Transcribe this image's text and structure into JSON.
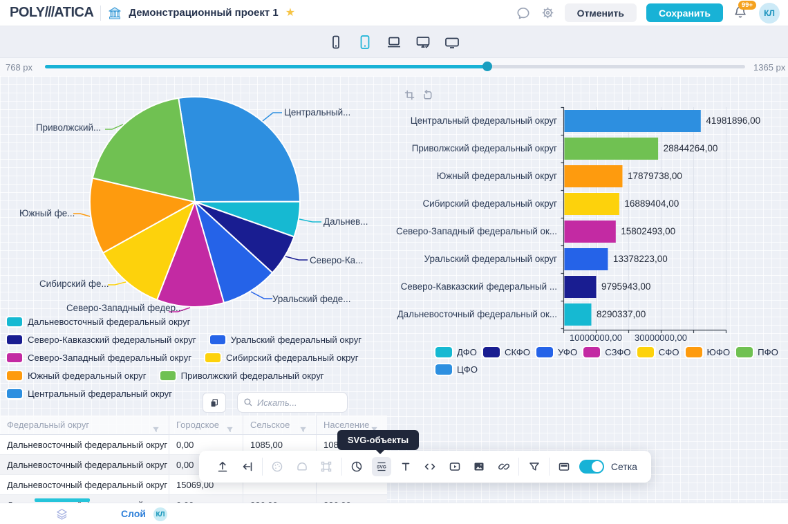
{
  "header": {
    "logo_part1": "POLY",
    "logo_slashes": "///",
    "logo_part2": "ATICA",
    "project_title": "Демонстрационный проект 1",
    "cancel_label": "Отменить",
    "save_label": "Сохранить",
    "notification_count": "99+",
    "avatar_initials": "КЛ"
  },
  "device_bar": {
    "devices": [
      "phone",
      "tablet",
      "laptop",
      "desktop-check",
      "widescreen"
    ],
    "selected": "tablet"
  },
  "width_slider": {
    "min_label": "768 px",
    "max_label": "1365 px",
    "fill_percent": 63.2
  },
  "colors": {
    "accent": "#18b2d6",
    "text_dark": "#2b3a55",
    "text_muted": "#8a93a6",
    "badge_orange": "#f5a21f",
    "layer_link_blue": "#2f80d9"
  },
  "chart_data": [
    {
      "type": "pie",
      "start_angle_deg": -9,
      "slices": [
        {
          "name": "Центральный федеральный округ",
          "short": "ЦФО",
          "callout": "Центральный...",
          "value": 41981896,
          "color": "#2d8fe0"
        },
        {
          "name": "Дальневосточный федеральный округ",
          "short": "ДФО",
          "callout": "Дальнев...",
          "value": 8290337,
          "color": "#16b9d2"
        },
        {
          "name": "Северо-Кавказский федеральный округ",
          "short": "СКФО",
          "callout": "Северо-Ка...",
          "value": 9795943,
          "color": "#191d91"
        },
        {
          "name": "Уральский федеральный округ",
          "short": "УФО",
          "callout": "Уральский феде...",
          "value": 13378223,
          "color": "#2563e8"
        },
        {
          "name": "Северо-Западный федеральный округ",
          "short": "СЗФО",
          "callout": "Северо-Западный федер...",
          "value": 15802493,
          "color": "#c32aa3"
        },
        {
          "name": "Сибирский федеральный округ",
          "short": "СФО",
          "callout": "Сибирский фе...",
          "value": 16889404,
          "color": "#fdd20c"
        },
        {
          "name": "Южный федеральный округ",
          "short": "ЮФО",
          "callout": "Южный фе...",
          "value": 17879738,
          "color": "#fe9b0e"
        },
        {
          "name": "Приволжский федеральный округ",
          "short": "ПФО",
          "callout": "Приволжский...",
          "value": 28844264,
          "color": "#70c152"
        }
      ],
      "legend_order": [
        "ДФО",
        "СКФО",
        "УФО",
        "СЗФО",
        "СФО",
        "ЮФО",
        "ПФО",
        "ЦФО"
      ],
      "legend_position": "bottom"
    },
    {
      "type": "bar",
      "orientation": "horizontal",
      "categories": [
        "Центральный федеральный округ",
        "Приволжский федеральный округ",
        "Южный федеральный округ",
        "Сибирский федеральный округ",
        "Северо-Западный федеральный ок...",
        "Уральский федеральный округ",
        "Северо-Кавказский федеральный ...",
        "Дальневосточный федеральный ок..."
      ],
      "values": [
        41981896,
        28844264,
        17879738,
        16889404,
        15802493,
        13378223,
        9795943,
        8290337
      ],
      "value_labels": [
        "41981896,00",
        "28844264,00",
        "17879738,00",
        "16889404,00",
        "15802493,00",
        "13378223,00",
        "9795943,00",
        "8290337,00"
      ],
      "colors": [
        "#2d8fe0",
        "#70c152",
        "#fe9b0e",
        "#fdd20c",
        "#c32aa3",
        "#2563e8",
        "#191d91",
        "#16b9d2"
      ],
      "xlim": [
        0,
        50000000
      ],
      "x_tick_step": 10000000,
      "x_tick_labels": [
        {
          "v": 10000000,
          "label": "10000000,00"
        },
        {
          "v": 30000000,
          "label": "30000000,00"
        }
      ],
      "grid": "vertical",
      "legend": [
        "ДФО",
        "СКФО",
        "УФО",
        "СЗФО",
        "СФО",
        "ЮФО",
        "ПФО",
        "ЦФО"
      ],
      "legend_position": "bottom"
    }
  ],
  "table": {
    "search_placeholder": "Искать...",
    "columns": [
      "Федеральный округ",
      "Городское",
      "Сельское",
      "Население"
    ],
    "rows": [
      [
        "Дальневосточный федеральный округ",
        "0,00",
        "1085,00",
        "1085,00"
      ],
      [
        "Дальневосточный федеральный округ",
        "0,00",
        "",
        ""
      ],
      [
        "Дальневосточный федеральный округ",
        "15069,00",
        "",
        ""
      ],
      [
        "Дальневосточный федеральный округ",
        "0,00",
        "226,00",
        "226,00"
      ]
    ]
  },
  "toolbar": {
    "tooltip": "SVG-объекты",
    "grid_toggle_label": "Сетка",
    "grid_toggle_on": true,
    "items": [
      {
        "name": "upload-icon",
        "state": "normal"
      },
      {
        "name": "insert-left-icon",
        "state": "normal"
      },
      {
        "name": "divider"
      },
      {
        "name": "palette-icon",
        "state": "disabled"
      },
      {
        "name": "tray-icon",
        "state": "disabled"
      },
      {
        "name": "transform-icon",
        "state": "disabled"
      },
      {
        "name": "divider"
      },
      {
        "name": "pie-chart-icon",
        "state": "normal"
      },
      {
        "name": "svg-objects-icon",
        "state": "selected"
      },
      {
        "name": "text-icon",
        "state": "normal"
      },
      {
        "name": "code-icon",
        "state": "normal"
      },
      {
        "name": "video-icon",
        "state": "normal"
      },
      {
        "name": "image-icon",
        "state": "normal"
      },
      {
        "name": "link-icon",
        "state": "normal"
      },
      {
        "name": "divider"
      },
      {
        "name": "filter-icon",
        "state": "normal"
      },
      {
        "name": "divider"
      },
      {
        "name": "window-icon",
        "state": "normal"
      }
    ]
  },
  "footer": {
    "layer_label": "Слой",
    "badge": "КЛ"
  }
}
